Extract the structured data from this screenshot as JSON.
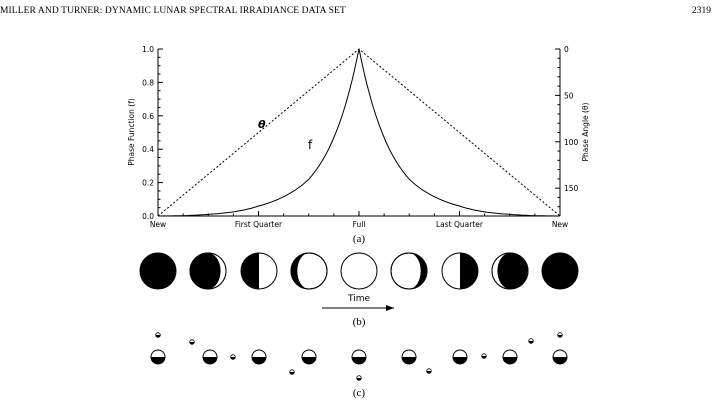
{
  "header": {
    "running_title": "MILLER AND TURNER: DYNAMIC LUNAR SPECTRAL IRRADIANCE DATA SET",
    "page_number": "2319"
  },
  "panel_a": {
    "caption": "(a)",
    "left_axis_label": "Phase Function (f)",
    "right_axis_label": "Phase Angle (θ)",
    "curve_label_f": "f",
    "curve_label_theta": "θ",
    "left_ticks": [
      "0.0",
      "0.2",
      "0.4",
      "0.6",
      "0.8",
      "1.0"
    ],
    "right_ticks": [
      "0",
      "50",
      "100",
      "150"
    ],
    "x_ticks": [
      "New",
      "First Quarter",
      "Full",
      "Last Quarter",
      "New"
    ]
  },
  "panel_b": {
    "caption": "(b)",
    "arrow_label": "Time"
  },
  "panel_c": {
    "caption": "(c)"
  },
  "chart_data": {
    "type": "line",
    "x": [
      "New",
      "First Quarter",
      "Full",
      "Last Quarter",
      "New"
    ],
    "ylim": [
      0,
      1
    ],
    "y2lim": [
      180,
      0
    ],
    "series": [
      {
        "name": "f",
        "x": [
          0,
          0.125,
          0.25,
          0.375,
          0.5,
          0.625,
          0.75,
          0.875,
          1
        ],
        "values": [
          0,
          0.01,
          0.06,
          0.22,
          1,
          0.22,
          0.06,
          0.01,
          0
        ]
      },
      {
        "name": "θ",
        "x": [
          0,
          0.5,
          1
        ],
        "values": [
          180,
          0,
          180
        ]
      }
    ],
    "grid": false
  }
}
